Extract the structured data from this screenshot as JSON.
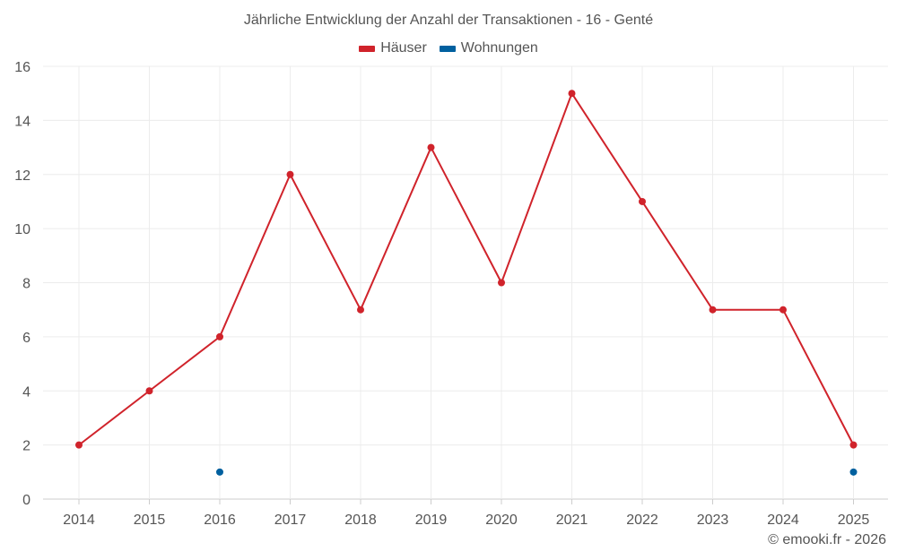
{
  "chart_data": {
    "type": "line",
    "title": "Jährliche Entwicklung der Anzahl der Transaktionen - 16 - Genté",
    "categories": [
      "2014",
      "2015",
      "2016",
      "2017",
      "2018",
      "2019",
      "2020",
      "2021",
      "2022",
      "2023",
      "2024",
      "2025"
    ],
    "series": [
      {
        "name": "Häuser",
        "color": "#d0232b",
        "values": [
          2,
          4,
          6,
          12,
          7,
          13,
          8,
          15,
          11,
          7,
          7,
          2
        ]
      },
      {
        "name": "Wohnungen",
        "color": "#00609f",
        "values": [
          null,
          null,
          1,
          null,
          null,
          null,
          null,
          null,
          null,
          null,
          null,
          1
        ]
      }
    ],
    "ylim": [
      0,
      16
    ],
    "yticks": [
      0,
      2,
      4,
      6,
      8,
      10,
      12,
      14,
      16
    ],
    "grid": true,
    "legend_position": "top-center"
  },
  "credit": "© emooki.fr - 2026"
}
